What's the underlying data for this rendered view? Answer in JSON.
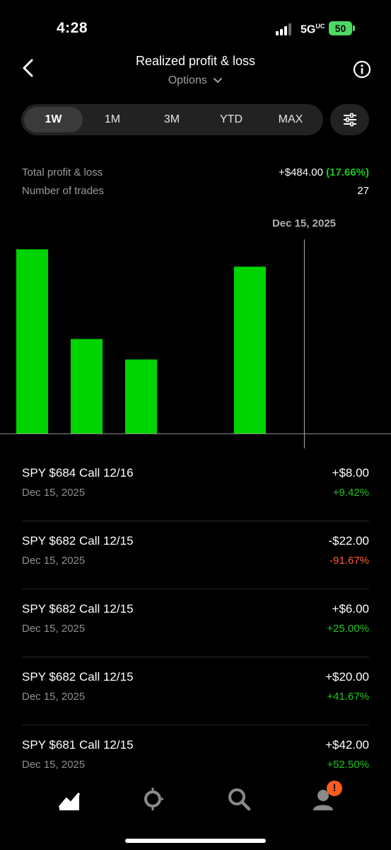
{
  "status_bar": {
    "time": "4:28",
    "network": "5G",
    "network_sup": "UC",
    "battery": "50"
  },
  "header": {
    "title": "Realized profit & loss",
    "subtitle": "Options",
    "subtitle_icon": "chevron-down-icon"
  },
  "tabs": [
    {
      "label": "1W",
      "active": true
    },
    {
      "label": "1M",
      "active": false
    },
    {
      "label": "3M",
      "active": false
    },
    {
      "label": "YTD",
      "active": false
    },
    {
      "label": "MAX",
      "active": false
    }
  ],
  "summary": {
    "total_label": "Total profit & loss",
    "total_value": "+$484.00",
    "total_pct": "(17.66%)",
    "trades_label": "Number of trades",
    "trades_value": "27"
  },
  "chart_data": {
    "type": "bar",
    "selected_label": "Dec 15, 2025",
    "values": [
      1.0,
      0.513,
      0.402,
      0,
      0.906
    ],
    "color": "#00d400"
  },
  "trades": [
    {
      "name": "SPY $684 Call 12/16",
      "date": "Dec 15, 2025",
      "amount": "+$8.00",
      "pct": "+9.42%",
      "positive": true
    },
    {
      "name": "SPY $682 Call 12/15",
      "date": "Dec 15, 2025",
      "amount": "-$22.00",
      "pct": "-91.67%",
      "positive": false
    },
    {
      "name": "SPY $682 Call 12/15",
      "date": "Dec 15, 2025",
      "amount": "+$6.00",
      "pct": "+25.00%",
      "positive": true
    },
    {
      "name": "SPY $682 Call 12/15",
      "date": "Dec 15, 2025",
      "amount": "+$20.00",
      "pct": "+41.67%",
      "positive": true
    },
    {
      "name": "SPY $681 Call 12/15",
      "date": "Dec 15, 2025",
      "amount": "+$42.00",
      "pct": "+52.50%",
      "positive": true
    }
  ],
  "nav": {
    "items": [
      "investing-icon",
      "crypto-icon",
      "search-icon",
      "account-icon"
    ],
    "badge": "!"
  }
}
